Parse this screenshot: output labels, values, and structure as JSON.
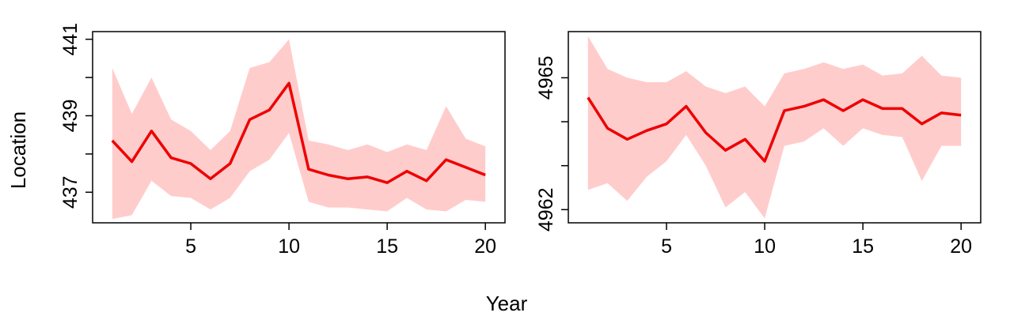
{
  "labels": {
    "ylabel": "Location",
    "xlabel": "Year"
  },
  "colors": {
    "line": "#ee0000",
    "band": "#ffcccc",
    "axis": "#000000"
  },
  "chart_data": [
    {
      "type": "line",
      "title": "",
      "x": [
        1,
        2,
        3,
        4,
        5,
        6,
        7,
        8,
        9,
        10,
        11,
        12,
        13,
        14,
        15,
        16,
        17,
        18,
        19,
        20
      ],
      "xlim": [
        0,
        21
      ],
      "ylim": [
        436.2,
        441.2
      ],
      "xticks": [
        5,
        10,
        15,
        20
      ],
      "xtick_labels": [
        "5",
        "10",
        "15",
        "20"
      ],
      "yticks": [
        437,
        438,
        439,
        440,
        441
      ],
      "ytick_labels": [
        "437",
        "",
        "439",
        "",
        "441"
      ],
      "grid": false,
      "series": [
        {
          "values": [
            438.35,
            437.8,
            438.6,
            437.9,
            437.75,
            437.35,
            437.75,
            438.9,
            439.15,
            439.85,
            437.6,
            437.45,
            437.35,
            437.4,
            437.25,
            437.55,
            437.3,
            437.85,
            437.65,
            437.45
          ],
          "lower": [
            436.3,
            436.4,
            437.3,
            436.9,
            436.85,
            436.55,
            436.85,
            437.55,
            437.85,
            438.55,
            436.75,
            436.6,
            436.6,
            436.55,
            436.5,
            436.85,
            436.55,
            436.5,
            436.8,
            436.75
          ],
          "upper": [
            440.25,
            439.05,
            440.0,
            438.9,
            438.6,
            438.1,
            438.6,
            440.25,
            440.4,
            441.0,
            438.35,
            438.25,
            438.1,
            438.25,
            438.05,
            438.25,
            438.1,
            439.25,
            438.4,
            438.2
          ]
        }
      ]
    },
    {
      "type": "line",
      "title": "",
      "x": [
        1,
        2,
        3,
        4,
        5,
        6,
        7,
        8,
        9,
        10,
        11,
        12,
        13,
        14,
        15,
        16,
        17,
        18,
        19,
        20
      ],
      "xlim": [
        0,
        21
      ],
      "ylim": [
        4961.7,
        4966.05
      ],
      "xticks": [
        5,
        10,
        15,
        20
      ],
      "xtick_labels": [
        "5",
        "10",
        "15",
        "20"
      ],
      "yticks": [
        4962,
        4963,
        4964,
        4965
      ],
      "ytick_labels": [
        "4962",
        "",
        "",
        "4965"
      ],
      "grid": false,
      "series": [
        {
          "values": [
            4964.55,
            4963.85,
            4963.6,
            4963.8,
            4963.95,
            4964.35,
            4963.75,
            4963.35,
            4963.6,
            4963.1,
            4964.25,
            4964.35,
            4964.5,
            4964.25,
            4964.5,
            4964.3,
            4964.3,
            4963.95,
            4964.2,
            4964.15
          ],
          "lower": [
            4962.45,
            4962.6,
            4962.2,
            4962.75,
            4963.1,
            4963.7,
            4963.0,
            4962.05,
            4962.4,
            4961.8,
            4963.45,
            4963.55,
            4963.85,
            4963.45,
            4963.85,
            4963.7,
            4963.65,
            4962.65,
            4963.45,
            4963.45
          ],
          "upper": [
            4965.95,
            4965.2,
            4965.0,
            4964.9,
            4964.9,
            4965.15,
            4964.8,
            4964.65,
            4964.8,
            4964.35,
            4965.1,
            4965.2,
            4965.35,
            4965.2,
            4965.3,
            4965.05,
            4965.1,
            4965.5,
            4965.05,
            4965.0
          ]
        }
      ]
    }
  ]
}
